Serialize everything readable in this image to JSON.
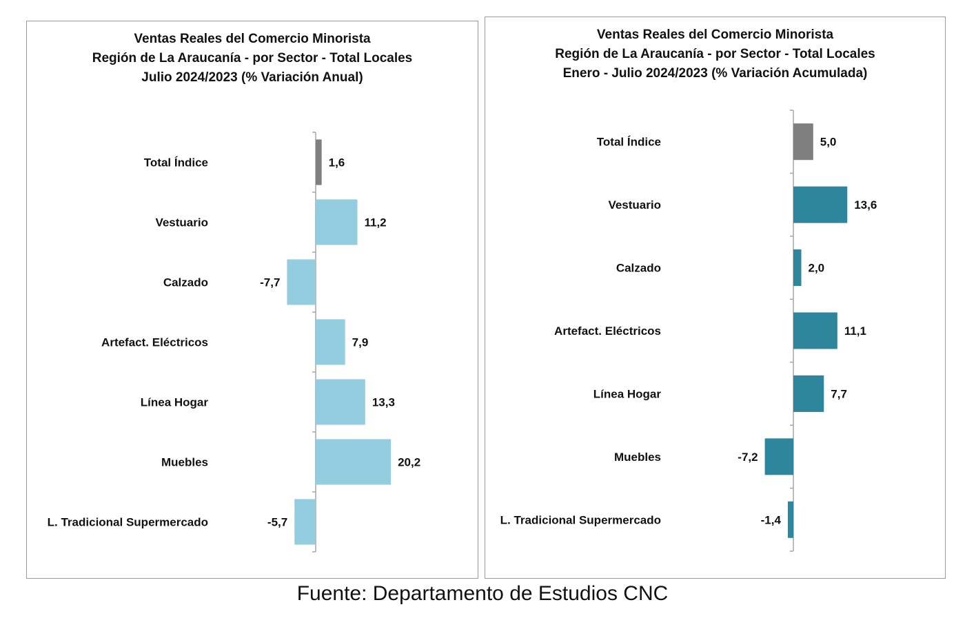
{
  "chart_data": [
    {
      "type": "bar",
      "orientation": "horizontal",
      "title": [
        "Ventas Reales del Comercio Minorista",
        "Región de La Araucanía - por Sector - Total Locales",
        "Julio 2024/2023 (% Variación Anual)"
      ],
      "categories": [
        "Total Índice",
        "Vestuario",
        "Calzado",
        "Artefact. Eléctricos",
        "Línea Hogar",
        "Muebles",
        "L. Tradicional Supermercado"
      ],
      "values": [
        1.6,
        11.2,
        -7.7,
        7.9,
        13.3,
        20.2,
        -5.7
      ],
      "value_labels": [
        "1,6",
        "11,2",
        "-7,7",
        "7,9",
        "13,3",
        "20,2",
        "-5,7"
      ],
      "colors": [
        "#7f7f7f",
        "#94cde0",
        "#94cde0",
        "#94cde0",
        "#94cde0",
        "#94cde0",
        "#94cde0"
      ],
      "xlim": [
        -10,
        22
      ],
      "grid": false,
      "legend": "none"
    },
    {
      "type": "bar",
      "orientation": "horizontal",
      "title": [
        "Ventas Reales del Comercio Minorista",
        "Región de La Araucanía - por Sector - Total Locales",
        "Enero - Julio 2024/2023 (% Variación Acumulada)"
      ],
      "categories": [
        "Total Índice",
        "Vestuario",
        "Calzado",
        "Artefact. Eléctricos",
        "Línea Hogar",
        "Muebles",
        "L. Tradicional Supermercado"
      ],
      "values": [
        5.0,
        13.6,
        2.0,
        11.1,
        7.7,
        -7.2,
        -1.4
      ],
      "value_labels": [
        "5,0",
        "13,6",
        "2,0",
        "11,1",
        "7,7",
        "-7,2",
        "-1,4"
      ],
      "colors": [
        "#7f7f7f",
        "#2e869c",
        "#2e869c",
        "#2e869c",
        "#2e869c",
        "#2e869c",
        "#2e869c"
      ],
      "xlim": [
        -10,
        22
      ],
      "grid": false,
      "legend": "none"
    }
  ],
  "source": "Fuente: Departamento de Estudios CNC"
}
